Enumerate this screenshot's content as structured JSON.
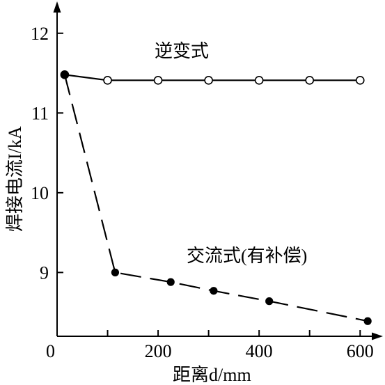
{
  "chart_data": {
    "type": "line",
    "xlabel": "距离d/mm",
    "ylabel": "焊接电流I/kA",
    "xlim": [
      0,
      660
    ],
    "ylim": [
      8.2,
      12.3
    ],
    "xticks": [
      {
        "value": 0,
        "label": "0"
      },
      {
        "value": 200,
        "label": "200"
      },
      {
        "value": 400,
        "label": "400"
      },
      {
        "value": 600,
        "label": "600"
      }
    ],
    "xminor": [
      100,
      300,
      500
    ],
    "yticks": [
      {
        "value": 9,
        "label": "9"
      },
      {
        "value": 10,
        "label": "10"
      },
      {
        "value": 11,
        "label": "11"
      },
      {
        "value": 12,
        "label": "12"
      }
    ],
    "grid": false,
    "series": [
      {
        "name": "逆变式",
        "marker": "open-circle",
        "dash": "solid",
        "x": [
          15,
          100,
          200,
          300,
          400,
          500,
          600
        ],
        "y": [
          11.48,
          11.41,
          11.41,
          11.41,
          11.41,
          11.41,
          11.41
        ]
      },
      {
        "name": "交流式(有补偿)",
        "marker": "filled-circle",
        "dash": "dashed",
        "x": [
          15,
          115,
          225,
          310,
          420,
          615
        ],
        "y": [
          11.48,
          9.0,
          8.88,
          8.77,
          8.64,
          8.39
        ]
      }
    ]
  }
}
